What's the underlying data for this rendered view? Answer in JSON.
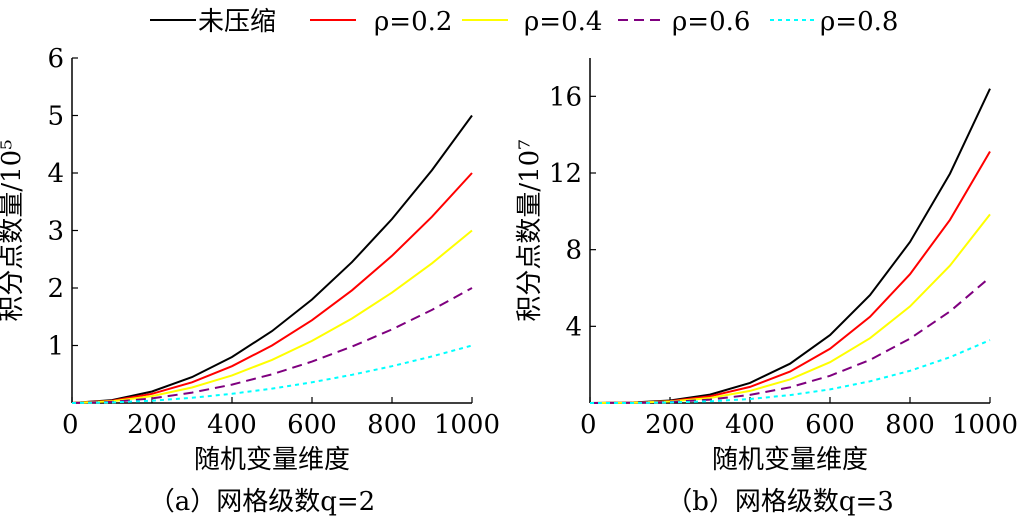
{
  "legend": [
    {
      "label": "未压缩",
      "color": "#000000",
      "dash": "solid"
    },
    {
      "label": "ρ=0.2",
      "color": "#ff0000",
      "dash": "solid"
    },
    {
      "label": "ρ=0.4",
      "color": "#ffff00",
      "dash": "solid"
    },
    {
      "label": "ρ=0.6",
      "color": "#7f007f",
      "dash": "dashed"
    },
    {
      "label": "ρ=0.8",
      "color": "#00ffff",
      "dash": "dotted"
    }
  ],
  "chart_data": [
    {
      "type": "line",
      "caption": "（a）网格级数q=2",
      "xlabel": "随机变量维度",
      "ylabel": "积分点数量/10⁵",
      "xlim": [
        0,
        1000
      ],
      "ylim": [
        0,
        6
      ],
      "xticks": [
        0,
        200,
        400,
        600,
        800,
        1000
      ],
      "yticks": [
        1,
        2,
        3,
        4,
        5,
        6
      ],
      "x": [
        0,
        100,
        200,
        300,
        400,
        500,
        600,
        700,
        800,
        900,
        1000
      ],
      "series": [
        {
          "name": "未压缩",
          "values": [
            0,
            0.05,
            0.2,
            0.45,
            0.8,
            1.25,
            1.8,
            2.45,
            3.2,
            4.05,
            5.0
          ]
        },
        {
          "name": "ρ=0.2",
          "values": [
            0,
            0.04,
            0.16,
            0.36,
            0.64,
            1.0,
            1.44,
            1.96,
            2.56,
            3.24,
            4.0
          ]
        },
        {
          "name": "ρ=0.4",
          "values": [
            0,
            0.03,
            0.12,
            0.27,
            0.48,
            0.75,
            1.08,
            1.47,
            1.92,
            2.43,
            3.0
          ]
        },
        {
          "name": "ρ=0.6",
          "values": [
            0,
            0.02,
            0.08,
            0.18,
            0.32,
            0.5,
            0.72,
            0.98,
            1.28,
            1.62,
            2.0
          ]
        },
        {
          "name": "ρ=0.8",
          "values": [
            0,
            0.01,
            0.04,
            0.09,
            0.16,
            0.25,
            0.36,
            0.49,
            0.64,
            0.81,
            1.0
          ]
        }
      ]
    },
    {
      "type": "line",
      "caption": "（b）网格级数q=3",
      "xlabel": "随机变量维度",
      "ylabel": "积分点数量/10⁷",
      "xlim": [
        0,
        1000
      ],
      "ylim": [
        0,
        18
      ],
      "xticks": [
        0,
        200,
        400,
        600,
        800,
        1000
      ],
      "yticks": [
        4,
        8,
        12,
        16
      ],
      "x": [
        0,
        100,
        200,
        300,
        400,
        500,
        600,
        700,
        800,
        900,
        1000
      ],
      "series": [
        {
          "name": "未压缩",
          "values": [
            0,
            0.02,
            0.13,
            0.44,
            1.05,
            2.05,
            3.54,
            5.63,
            8.4,
            11.97,
            16.4
          ]
        },
        {
          "name": "ρ=0.2",
          "values": [
            0,
            0.01,
            0.1,
            0.35,
            0.84,
            1.64,
            2.83,
            4.5,
            6.72,
            9.56,
            13.12
          ]
        },
        {
          "name": "ρ=0.4",
          "values": [
            0,
            0.01,
            0.08,
            0.26,
            0.63,
            1.23,
            2.13,
            3.38,
            5.04,
            7.17,
            9.84
          ]
        },
        {
          "name": "ρ=0.6",
          "values": [
            0,
            0.01,
            0.05,
            0.18,
            0.42,
            0.82,
            1.42,
            2.25,
            3.36,
            4.78,
            6.56
          ]
        },
        {
          "name": "ρ=0.8",
          "values": [
            0,
            0.0,
            0.03,
            0.09,
            0.21,
            0.41,
            0.71,
            1.13,
            1.68,
            2.39,
            3.28
          ]
        }
      ]
    }
  ]
}
